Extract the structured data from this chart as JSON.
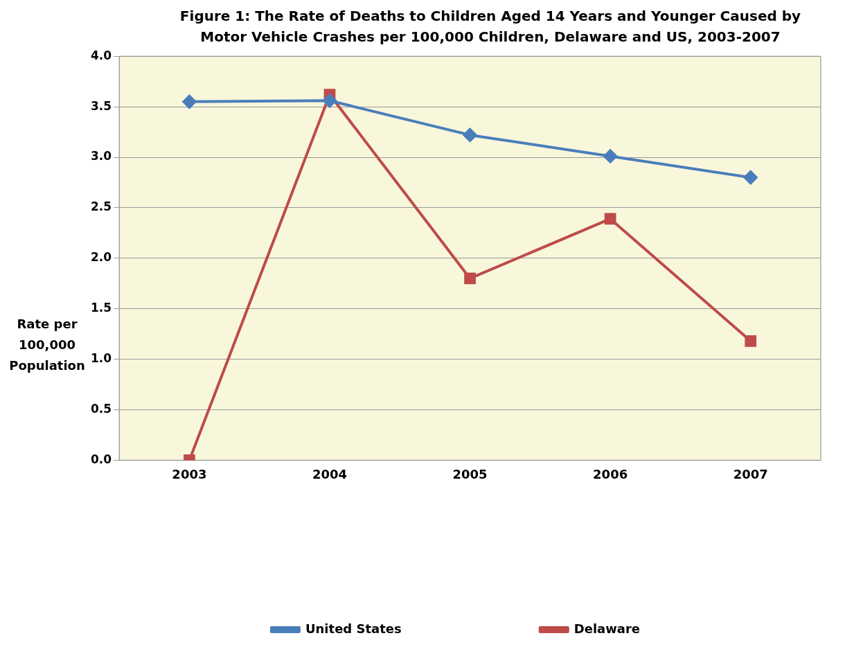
{
  "chart_data": {
    "type": "line",
    "title": "Figure  1: The Rate of Deaths to Children Aged 14 Years and Younger Caused by Motor Vehicle Crashes per 100,000 Children, Delaware and US, 2003-2007",
    "ylabel": "Rate per 100,000 Population",
    "categories": [
      "2003",
      "2004",
      "2005",
      "2006",
      "2007"
    ],
    "series": [
      {
        "name": "United States",
        "color": "#4a7ebb",
        "marker": "diamond",
        "values": [
          3.55,
          3.56,
          3.22,
          3.01,
          2.8
        ]
      },
      {
        "name": "Delaware",
        "color": "#be4b48",
        "marker": "square",
        "values": [
          0.0,
          3.62,
          1.8,
          2.39,
          1.18
        ]
      }
    ],
    "ylim": [
      0,
      4
    ],
    "yticks": [
      {
        "value": 0,
        "label": "0.0"
      },
      {
        "value": 0.5,
        "label": "0.5"
      },
      {
        "value": 1,
        "label": "1.0"
      },
      {
        "value": 1.5,
        "label": "1.5"
      },
      {
        "value": 2,
        "label": "2.0"
      },
      {
        "value": 2.5,
        "label": "2.5"
      },
      {
        "value": 3,
        "label": "3.0"
      },
      {
        "value": 3.5,
        "label": "3.5"
      },
      {
        "value": 4,
        "label": "4.0"
      }
    ],
    "grid": "y",
    "legend": "bottom"
  }
}
